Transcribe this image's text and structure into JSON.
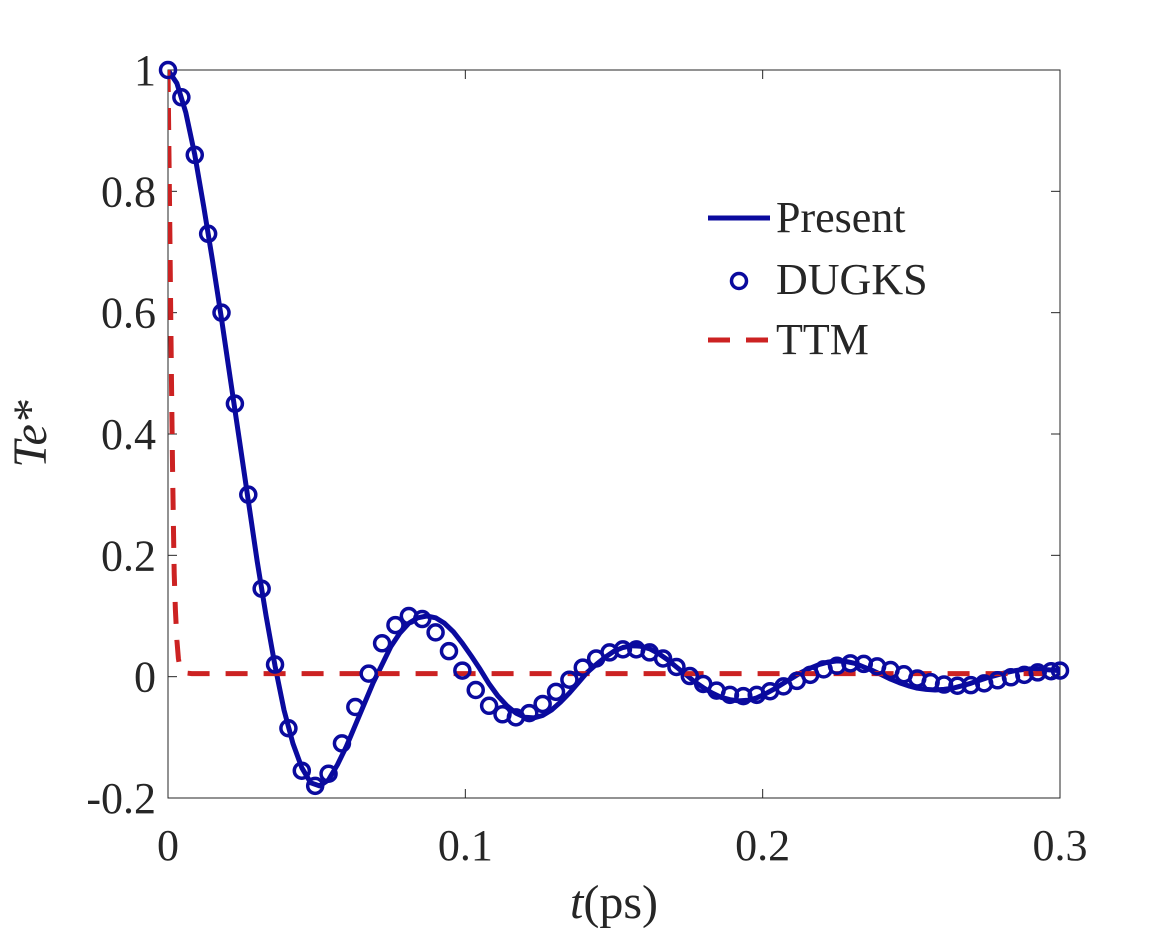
{
  "chart_data": {
    "type": "line",
    "title": "",
    "xlabel": {
      "var": "t",
      "unit": "(ps)"
    },
    "ylabel": "Te*",
    "xlim": [
      0,
      0.3
    ],
    "ylim": [
      -0.2,
      1
    ],
    "xticks": [
      0,
      0.1,
      0.2,
      0.3
    ],
    "xtick_labels": [
      "0",
      "0.1",
      "0.2",
      "0.3"
    ],
    "yticks": [
      -0.2,
      0,
      0.2,
      0.4,
      0.6,
      0.8,
      1
    ],
    "ytick_labels": [
      "-0.2",
      "0",
      "0.2",
      "0.4",
      "0.6",
      "0.8",
      "1"
    ],
    "grid": false,
    "legend_position": "top-right",
    "series": [
      {
        "name": "Present",
        "style": "solid-line",
        "color": "#0a0a9e",
        "x": [
          0,
          0.003,
          0.006,
          0.009,
          0.012,
          0.015,
          0.018,
          0.021,
          0.024,
          0.027,
          0.03,
          0.033,
          0.036,
          0.039,
          0.042,
          0.045,
          0.048,
          0.051,
          0.054,
          0.057,
          0.06,
          0.063,
          0.066,
          0.069,
          0.072,
          0.075,
          0.078,
          0.081,
          0.084,
          0.087,
          0.09,
          0.093,
          0.096,
          0.099,
          0.102,
          0.105,
          0.108,
          0.111,
          0.114,
          0.117,
          0.12,
          0.123,
          0.126,
          0.129,
          0.132,
          0.135,
          0.138,
          0.141,
          0.144,
          0.147,
          0.15,
          0.153,
          0.156,
          0.159,
          0.162,
          0.165,
          0.168,
          0.171,
          0.174,
          0.177,
          0.18,
          0.183,
          0.186,
          0.189,
          0.192,
          0.195,
          0.198,
          0.201,
          0.204,
          0.207,
          0.21,
          0.213,
          0.216,
          0.219,
          0.222,
          0.225,
          0.228,
          0.231,
          0.234,
          0.237,
          0.24,
          0.243,
          0.246,
          0.249,
          0.252,
          0.255,
          0.258,
          0.261,
          0.264,
          0.267,
          0.27,
          0.273,
          0.276,
          0.279,
          0.282,
          0.285,
          0.288,
          0.291,
          0.294,
          0.297,
          0.3
        ],
        "values": [
          1.0,
          0.978,
          0.93,
          0.86,
          0.775,
          0.685,
          0.59,
          0.49,
          0.39,
          0.29,
          0.19,
          0.1,
          0.018,
          -0.055,
          -0.11,
          -0.15,
          -0.175,
          -0.18,
          -0.17,
          -0.145,
          -0.115,
          -0.08,
          -0.045,
          -0.01,
          0.02,
          0.05,
          0.072,
          0.088,
          0.097,
          0.1,
          0.097,
          0.088,
          0.074,
          0.055,
          0.034,
          0.012,
          -0.012,
          -0.032,
          -0.048,
          -0.06,
          -0.067,
          -0.068,
          -0.064,
          -0.055,
          -0.042,
          -0.027,
          -0.01,
          0.007,
          0.02,
          0.032,
          0.042,
          0.048,
          0.051,
          0.05,
          0.046,
          0.038,
          0.028,
          0.016,
          0.004,
          -0.008,
          -0.018,
          -0.027,
          -0.034,
          -0.038,
          -0.04,
          -0.039,
          -0.035,
          -0.028,
          -0.02,
          -0.011,
          -0.002,
          0.007,
          0.014,
          0.02,
          0.024,
          0.026,
          0.025,
          0.022,
          0.016,
          0.01,
          0.003,
          -0.004,
          -0.01,
          -0.015,
          -0.019,
          -0.021,
          -0.022,
          -0.021,
          -0.019,
          -0.015,
          -0.011,
          -0.006,
          -0.001,
          0.003,
          0.007,
          0.01,
          0.012,
          0.013,
          0.012,
          0.011,
          0.01
        ]
      },
      {
        "name": "DUGKS",
        "style": "circle-markers",
        "color": "#0a0a9e",
        "x": [
          0,
          0.0045,
          0.009,
          0.0135,
          0.018,
          0.0225,
          0.027,
          0.0315,
          0.036,
          0.0405,
          0.045,
          0.0495,
          0.054,
          0.0585,
          0.063,
          0.0675,
          0.072,
          0.0765,
          0.081,
          0.0855,
          0.09,
          0.0945,
          0.099,
          0.1035,
          0.108,
          0.1125,
          0.117,
          0.1215,
          0.126,
          0.1305,
          0.135,
          0.1395,
          0.144,
          0.1485,
          0.153,
          0.1575,
          0.162,
          0.1665,
          0.171,
          0.1755,
          0.18,
          0.1845,
          0.189,
          0.1935,
          0.198,
          0.2025,
          0.207,
          0.2115,
          0.216,
          0.2205,
          0.225,
          0.2295,
          0.234,
          0.2385,
          0.243,
          0.2475,
          0.252,
          0.2565,
          0.261,
          0.2655,
          0.27,
          0.2745,
          0.279,
          0.2835,
          0.288,
          0.2925,
          0.297,
          0.3
        ],
        "values": [
          1.0,
          0.955,
          0.86,
          0.73,
          0.6,
          0.45,
          0.3,
          0.145,
          0.02,
          -0.085,
          -0.155,
          -0.18,
          -0.16,
          -0.11,
          -0.05,
          0.005,
          0.055,
          0.085,
          0.1,
          0.095,
          0.073,
          0.042,
          0.01,
          -0.022,
          -0.048,
          -0.062,
          -0.067,
          -0.06,
          -0.045,
          -0.025,
          -0.005,
          0.015,
          0.03,
          0.04,
          0.045,
          0.045,
          0.04,
          0.03,
          0.016,
          0.001,
          -0.012,
          -0.023,
          -0.03,
          -0.032,
          -0.03,
          -0.024,
          -0.016,
          -0.007,
          0.003,
          0.012,
          0.018,
          0.022,
          0.021,
          0.017,
          0.011,
          0.004,
          -0.003,
          -0.009,
          -0.013,
          -0.015,
          -0.014,
          -0.011,
          -0.006,
          -0.001,
          0.003,
          0.007,
          0.009,
          0.01
        ]
      },
      {
        "name": "TTM",
        "style": "dashed-line",
        "color": "#cc2222",
        "x": [
          0,
          0.0003,
          0.0006,
          0.0009,
          0.0012,
          0.0015,
          0.0018,
          0.0021,
          0.0025,
          0.003,
          0.0035,
          0.004,
          0.005,
          0.006,
          0.008,
          0.01,
          0.02,
          0.05,
          0.1,
          0.15,
          0.2,
          0.25,
          0.3
        ],
        "values": [
          1.0,
          0.87,
          0.74,
          0.6,
          0.47,
          0.35,
          0.25,
          0.17,
          0.11,
          0.06,
          0.03,
          0.015,
          0.008,
          0.006,
          0.005,
          0.005,
          0.005,
          0.005,
          0.005,
          0.005,
          0.005,
          0.005,
          0.005
        ]
      }
    ]
  }
}
